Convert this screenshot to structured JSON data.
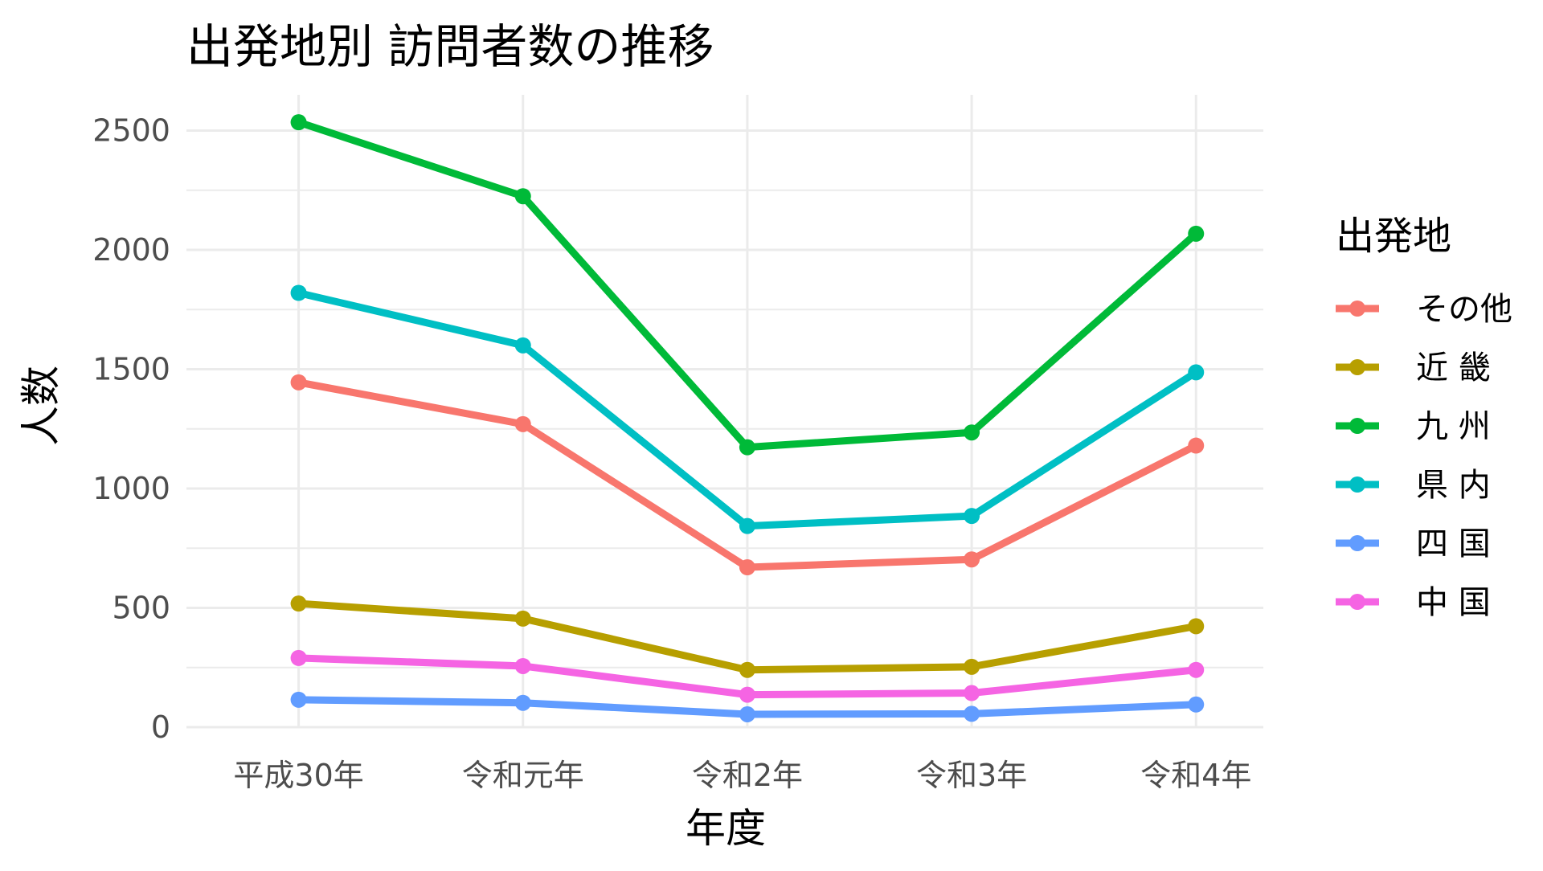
{
  "chart_data": {
    "type": "line",
    "title": "出発地別 訪問者数の推移",
    "xlabel": "年度",
    "ylabel": "人数",
    "categories": [
      "平成30年",
      "令和元年",
      "令和2年",
      "令和3年",
      "令和4年"
    ],
    "ylim": [
      0,
      2650
    ],
    "yticks": [
      0,
      500,
      1000,
      1500,
      2000,
      2500
    ],
    "yticks_labels": [
      "0",
      "500",
      "1000",
      "1500",
      "2000",
      "2500"
    ],
    "grid": true,
    "legend_position": "right",
    "legend_title": "出発地",
    "series": [
      {
        "name": "その他",
        "color": "#F8766D",
        "values": [
          1445,
          1270,
          670,
          703,
          1180
        ]
      },
      {
        "name": "近 畿",
        "color": "#B79F00",
        "values": [
          518,
          455,
          240,
          253,
          423
        ]
      },
      {
        "name": "九 州",
        "color": "#00BA38",
        "values": [
          2535,
          2225,
          1173,
          1235,
          2068
        ]
      },
      {
        "name": "県 内",
        "color": "#00BFC4",
        "values": [
          1820,
          1600,
          843,
          885,
          1487
        ]
      },
      {
        "name": "四 国",
        "color": "#619CFF",
        "values": [
          115,
          102,
          54,
          56,
          95
        ]
      },
      {
        "name": "中 国",
        "color": "#F564E3",
        "values": [
          290,
          256,
          136,
          143,
          240
        ]
      }
    ]
  }
}
